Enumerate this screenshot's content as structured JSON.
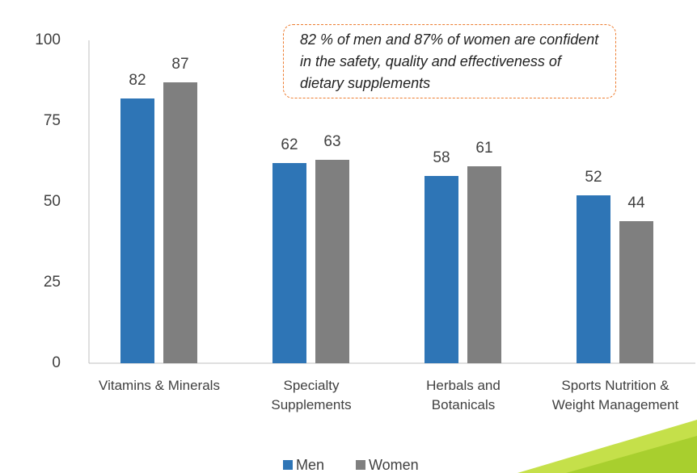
{
  "chart_data": {
    "type": "bar",
    "categories": [
      "Vitamins & Minerals",
      "Specialty Supplements",
      "Herbals and Botanicals",
      "Sports Nutrition & Weight Management"
    ],
    "series": [
      {
        "name": "Men",
        "color": "#2e75b6",
        "values": [
          82,
          62,
          58,
          52
        ]
      },
      {
        "name": "Women",
        "color": "#7f7f7f",
        "values": [
          87,
          63,
          61,
          44
        ]
      }
    ],
    "ylim": [
      0,
      100
    ],
    "yticks": [
      0,
      25,
      50,
      75,
      100
    ],
    "grid": false,
    "legend": "bottom",
    "annotation": "82 % of men and 87% of women are confident in the safety, quality and effectiveness of dietary supplements"
  }
}
